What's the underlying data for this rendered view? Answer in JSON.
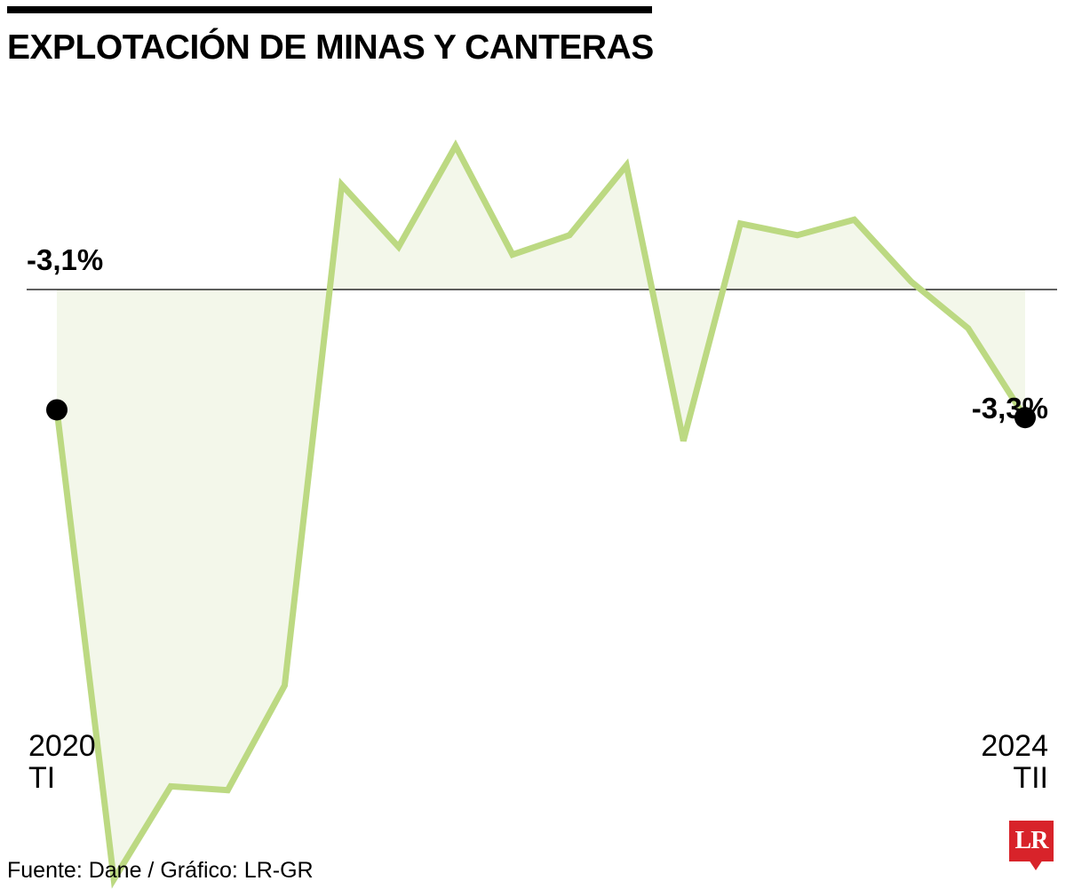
{
  "header": {
    "title": "EXPLOTACIÓN DE MINAS Y CANTERAS"
  },
  "footer": {
    "source": "Fuente: Dane / Gráfico: LR-GR",
    "logo_text": "LR"
  },
  "colors": {
    "line": "#bcd982",
    "fill": "#f3f7ea",
    "marker": "#000000",
    "logo": "#d8232a"
  },
  "chart_data": {
    "type": "area",
    "title": "EXPLOTACIÓN DE MINAS Y CANTERAS",
    "x_start_year": "2020",
    "x_start_quarter": "TI",
    "x_end_year": "2024",
    "x_end_quarter": "TII",
    "first_value_label": "-3,1%",
    "last_value_label": "-3,3%",
    "grid": false,
    "series": [
      {
        "values": [
          -3.1,
          -15.2,
          -12.8,
          -12.9,
          -10.2,
          2.7,
          1.1,
          3.7,
          0.9,
          1.4,
          3.2,
          -3.9,
          1.7,
          1.4,
          1.8,
          0.2,
          -1.0,
          -3.3
        ]
      }
    ]
  }
}
